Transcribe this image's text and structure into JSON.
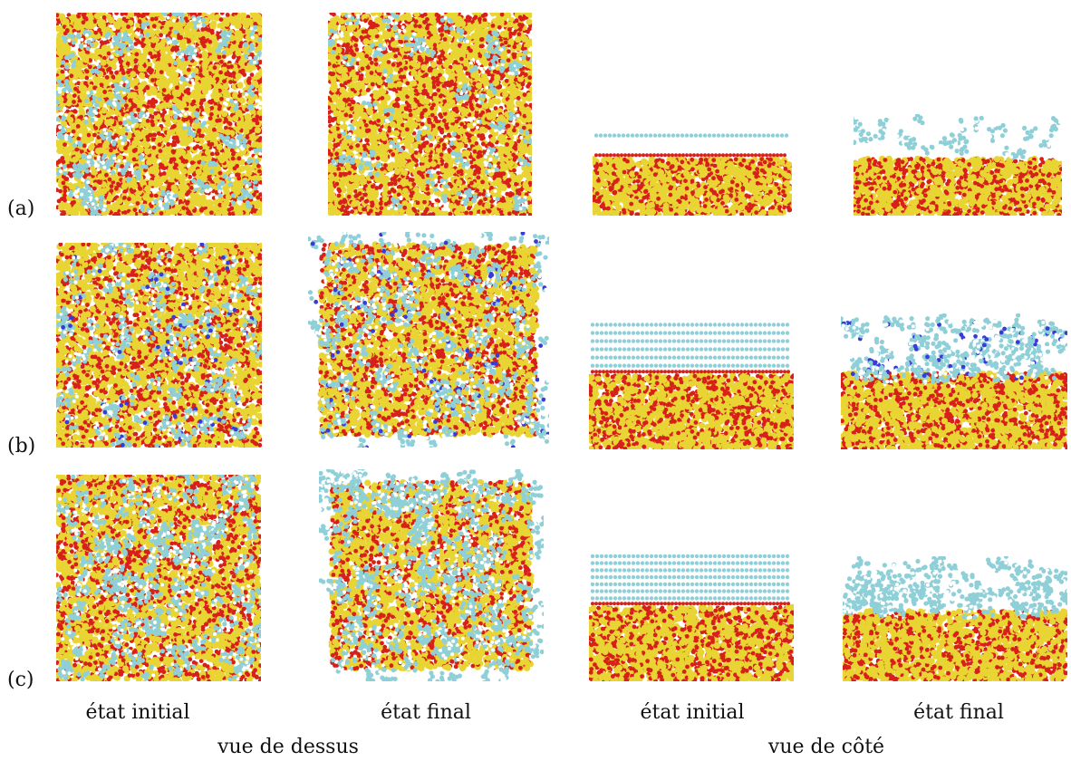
{
  "figure": {
    "row_labels": [
      "(a)",
      "(b)",
      "(c)"
    ],
    "column_captions": [
      "état initial",
      "état final",
      "état initial",
      "état final"
    ],
    "group_captions": [
      "vue de dessus",
      "vue de côté"
    ]
  },
  "palette": {
    "oxygen": "#d8201a",
    "silicon": "#e8d534",
    "carbon": "#8fd0d8",
    "hydrogen": "#ffffff",
    "nitrogen": "#3a3ad8"
  },
  "panels": [
    {
      "row": 0,
      "view": "top",
      "state": "initial",
      "coverage": 0.45,
      "nitrogen": false
    },
    {
      "row": 0,
      "view": "top",
      "state": "final",
      "coverage": 0.3,
      "nitrogen": false
    },
    {
      "row": 0,
      "view": "side",
      "state": "initial",
      "layers": 1,
      "nitrogen": false
    },
    {
      "row": 0,
      "view": "side",
      "state": "final",
      "layers": 1,
      "nitrogen": false
    },
    {
      "row": 1,
      "view": "top",
      "state": "initial",
      "coverage": 0.55,
      "nitrogen": true
    },
    {
      "row": 1,
      "view": "top",
      "state": "final",
      "coverage": 0.65,
      "nitrogen": true
    },
    {
      "row": 1,
      "view": "side",
      "state": "initial",
      "layers": 6,
      "nitrogen": true
    },
    {
      "row": 1,
      "view": "side",
      "state": "final",
      "layers": 4,
      "nitrogen": true
    },
    {
      "row": 2,
      "view": "top",
      "state": "initial",
      "coverage": 0.75,
      "nitrogen": false
    },
    {
      "row": 2,
      "view": "top",
      "state": "final",
      "coverage": 0.95,
      "nitrogen": false
    },
    {
      "row": 2,
      "view": "side",
      "state": "initial",
      "layers": 7,
      "nitrogen": false
    },
    {
      "row": 2,
      "view": "side",
      "state": "final",
      "layers": 4,
      "nitrogen": false
    }
  ]
}
